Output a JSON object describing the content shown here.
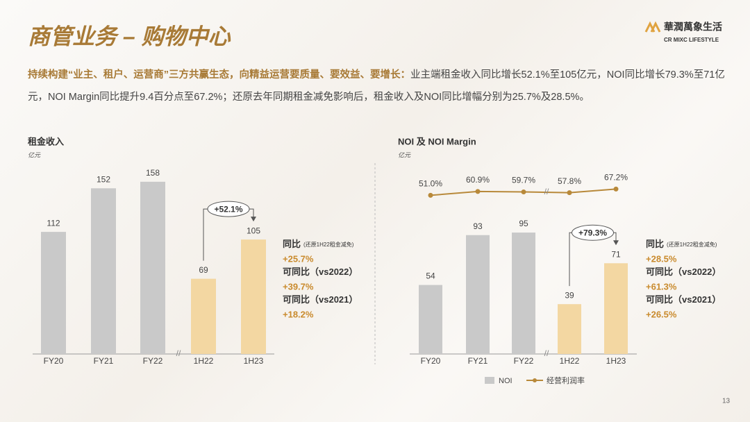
{
  "header": {
    "title": "商管业务 – 购物中心",
    "logo_cn": "華潤萬象生活",
    "logo_en": "CR MIXC LIFESTYLE"
  },
  "summary": {
    "lead": "持续构建“业主、租户、运营商”三方共赢生态，向精益运营要质量、要效益、要增长：",
    "body": "业主端租金收入同比增长52.1%至105亿元，NOI同比增长79.3%至71亿元，NOI Margin同比提升9.4百分点至67.2%；还原去年同期租金减免影响后，租金收入及NOI同比增幅分别为25.7%及28.5%。"
  },
  "chart_data": [
    {
      "type": "bar",
      "title": "租金收入",
      "unit": "亿元",
      "categories": [
        "FY20",
        "FY21",
        "FY22",
        "1H22",
        "1H23"
      ],
      "values": [
        112,
        152,
        158,
        69,
        105
      ],
      "colors": [
        "#c9c9c9",
        "#c9c9c9",
        "#c9c9c9",
        "#f3d7a2",
        "#f3d7a2"
      ],
      "ylim": [
        0,
        170
      ],
      "growth": "+52.1%",
      "notes": [
        {
          "label": "同比",
          "detail": "(还原1H22租金减免)",
          "value": "+25.7%"
        },
        {
          "label": "可同比（vs2022）",
          "value": "+39.7%"
        },
        {
          "label": "可同比（vs2021）",
          "value": "+18.2%"
        }
      ]
    },
    {
      "type": "bar_line",
      "title": "NOI 及 NOI Margin",
      "unit": "亿元",
      "categories": [
        "FY20",
        "FY21",
        "FY22",
        "1H22",
        "1H23"
      ],
      "series": [
        {
          "name": "NOI",
          "color": "#c9c9c9",
          "colors": [
            "#c9c9c9",
            "#c9c9c9",
            "#c9c9c9",
            "#f3d7a2",
            "#f3d7a2"
          ],
          "values": [
            54,
            93,
            95,
            39,
            71
          ]
        },
        {
          "name": "经营利润率",
          "color": "#b8893a",
          "axis": "y2",
          "values": [
            51.0,
            60.9,
            59.7,
            57.8,
            67.2
          ],
          "value_labels": [
            "51.0%",
            "60.9%",
            "59.7%",
            "57.8%",
            "67.2%"
          ]
        }
      ],
      "ylim": [
        0,
        145
      ],
      "y2lim": [
        -360,
        120
      ],
      "growth": "+79.3%",
      "notes": [
        {
          "label": "同比",
          "detail": "(还原1H22租金减免)",
          "value": "+28.5%"
        },
        {
          "label": "可同比（vs2022）",
          "value": "+61.3%"
        },
        {
          "label": "可同比（vs2021）",
          "value": "+26.5%"
        }
      ]
    }
  ],
  "page_number": "13"
}
